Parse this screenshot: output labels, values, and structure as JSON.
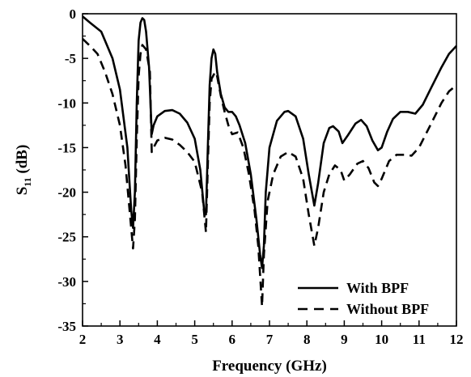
{
  "chart_data": {
    "type": "line",
    "xlabel": "Frequency (GHz)",
    "ylabel_main": "S",
    "ylabel_sub": "11",
    "ylabel_unit": " (dB)",
    "xlim": [
      2,
      12
    ],
    "ylim": [
      -35,
      0
    ],
    "x_ticks": [
      2,
      3,
      4,
      5,
      6,
      7,
      8,
      9,
      10,
      11,
      12
    ],
    "y_ticks": [
      0,
      -5,
      -10,
      -15,
      -20,
      -25,
      -30,
      -35
    ],
    "grid": false,
    "legend_position": "bottom-right",
    "series": [
      {
        "name": "With BPF",
        "style": "solid",
        "color": "#000000",
        "points": [
          [
            2.0,
            -0.3
          ],
          [
            2.2,
            -1.0
          ],
          [
            2.5,
            -2.0
          ],
          [
            2.8,
            -5.0
          ],
          [
            3.0,
            -8.5
          ],
          [
            3.2,
            -15.0
          ],
          [
            3.3,
            -22.0
          ],
          [
            3.35,
            -24.0
          ],
          [
            3.4,
            -20.0
          ],
          [
            3.45,
            -10.0
          ],
          [
            3.5,
            -3.0
          ],
          [
            3.55,
            -1.0
          ],
          [
            3.6,
            -0.5
          ],
          [
            3.65,
            -0.7
          ],
          [
            3.7,
            -2.0
          ],
          [
            3.78,
            -6.0
          ],
          [
            3.85,
            -13.5
          ],
          [
            3.9,
            -12.5
          ],
          [
            4.0,
            -11.5
          ],
          [
            4.2,
            -10.9
          ],
          [
            4.4,
            -10.8
          ],
          [
            4.6,
            -11.2
          ],
          [
            4.8,
            -12.2
          ],
          [
            5.0,
            -14.0
          ],
          [
            5.15,
            -17.5
          ],
          [
            5.25,
            -22.0
          ],
          [
            5.3,
            -22.5
          ],
          [
            5.35,
            -15.0
          ],
          [
            5.4,
            -8.0
          ],
          [
            5.45,
            -5.0
          ],
          [
            5.5,
            -4.0
          ],
          [
            5.55,
            -4.5
          ],
          [
            5.6,
            -6.5
          ],
          [
            5.7,
            -9.0
          ],
          [
            5.8,
            -10.5
          ],
          [
            5.9,
            -11.0
          ],
          [
            6.0,
            -11.0
          ],
          [
            6.1,
            -11.5
          ],
          [
            6.2,
            -12.5
          ],
          [
            6.35,
            -14.5
          ],
          [
            6.5,
            -18.0
          ],
          [
            6.65,
            -23.0
          ],
          [
            6.75,
            -27.0
          ],
          [
            6.8,
            -28.5
          ],
          [
            6.85,
            -26.0
          ],
          [
            6.9,
            -20.0
          ],
          [
            7.0,
            -15.0
          ],
          [
            7.2,
            -12.0
          ],
          [
            7.4,
            -11.0
          ],
          [
            7.5,
            -10.9
          ],
          [
            7.7,
            -11.5
          ],
          [
            7.9,
            -14.0
          ],
          [
            8.05,
            -18.0
          ],
          [
            8.2,
            -21.5
          ],
          [
            8.3,
            -19.0
          ],
          [
            8.45,
            -14.5
          ],
          [
            8.6,
            -12.8
          ],
          [
            8.7,
            -12.6
          ],
          [
            8.85,
            -13.2
          ],
          [
            8.95,
            -14.5
          ],
          [
            9.1,
            -13.6
          ],
          [
            9.3,
            -12.3
          ],
          [
            9.45,
            -11.9
          ],
          [
            9.6,
            -12.6
          ],
          [
            9.75,
            -14.2
          ],
          [
            9.9,
            -15.3
          ],
          [
            10.0,
            -15.0
          ],
          [
            10.15,
            -13.2
          ],
          [
            10.3,
            -11.8
          ],
          [
            10.5,
            -11.0
          ],
          [
            10.7,
            -11.0
          ],
          [
            10.9,
            -11.2
          ],
          [
            11.1,
            -10.2
          ],
          [
            11.3,
            -8.5
          ],
          [
            11.6,
            -6.0
          ],
          [
            11.8,
            -4.5
          ],
          [
            12.0,
            -3.6
          ]
        ]
      },
      {
        "name": "Without BPF",
        "style": "dashed",
        "color": "#000000",
        "points": [
          [
            2.0,
            -2.8
          ],
          [
            2.2,
            -3.6
          ],
          [
            2.4,
            -4.5
          ],
          [
            2.6,
            -6.5
          ],
          [
            2.8,
            -9.0
          ],
          [
            3.0,
            -12.5
          ],
          [
            3.15,
            -17.0
          ],
          [
            3.3,
            -24.0
          ],
          [
            3.35,
            -26.3
          ],
          [
            3.4,
            -23.0
          ],
          [
            3.45,
            -14.0
          ],
          [
            3.5,
            -7.0
          ],
          [
            3.55,
            -4.5
          ],
          [
            3.6,
            -3.5
          ],
          [
            3.7,
            -4.0
          ],
          [
            3.8,
            -6.5
          ],
          [
            3.85,
            -15.5
          ],
          [
            3.9,
            -15.0
          ],
          [
            4.0,
            -14.2
          ],
          [
            4.2,
            -13.9
          ],
          [
            4.4,
            -14.1
          ],
          [
            4.6,
            -14.7
          ],
          [
            4.8,
            -15.5
          ],
          [
            5.0,
            -16.6
          ],
          [
            5.2,
            -20.0
          ],
          [
            5.3,
            -24.5
          ],
          [
            5.35,
            -17.0
          ],
          [
            5.4,
            -10.0
          ],
          [
            5.45,
            -7.3
          ],
          [
            5.55,
            -6.5
          ],
          [
            5.6,
            -7.0
          ],
          [
            5.7,
            -9.2
          ],
          [
            5.8,
            -11.0
          ],
          [
            5.9,
            -12.5
          ],
          [
            6.0,
            -13.5
          ],
          [
            6.15,
            -13.3
          ],
          [
            6.3,
            -15.0
          ],
          [
            6.45,
            -18.0
          ],
          [
            6.6,
            -22.0
          ],
          [
            6.7,
            -26.0
          ],
          [
            6.8,
            -32.8
          ],
          [
            6.85,
            -27.0
          ],
          [
            6.95,
            -21.0
          ],
          [
            7.1,
            -18.0
          ],
          [
            7.3,
            -16.0
          ],
          [
            7.5,
            -15.5
          ],
          [
            7.7,
            -16.0
          ],
          [
            7.9,
            -18.5
          ],
          [
            8.05,
            -22.5
          ],
          [
            8.2,
            -26.0
          ],
          [
            8.3,
            -24.0
          ],
          [
            8.45,
            -20.0
          ],
          [
            8.6,
            -18.0
          ],
          [
            8.75,
            -17.0
          ],
          [
            8.9,
            -17.5
          ],
          [
            9.0,
            -18.7
          ],
          [
            9.15,
            -18.0
          ],
          [
            9.35,
            -16.8
          ],
          [
            9.5,
            -16.5
          ],
          [
            9.65,
            -17.3
          ],
          [
            9.8,
            -18.9
          ],
          [
            9.9,
            -19.3
          ],
          [
            10.0,
            -18.5
          ],
          [
            10.2,
            -16.5
          ],
          [
            10.4,
            -15.8
          ],
          [
            10.6,
            -15.8
          ],
          [
            10.8,
            -15.9
          ],
          [
            11.0,
            -15.0
          ],
          [
            11.3,
            -12.5
          ],
          [
            11.6,
            -10.0
          ],
          [
            11.8,
            -8.7
          ],
          [
            12.0,
            -8.0
          ]
        ]
      }
    ]
  }
}
